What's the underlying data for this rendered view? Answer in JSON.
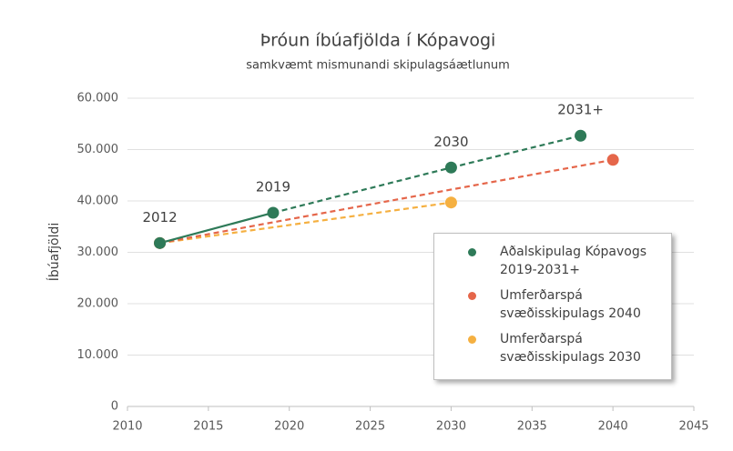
{
  "chart_data": {
    "type": "line",
    "title": "Þróun íbúafjölda í Kópavogi",
    "subtitle": "samkvæmt mismunandi skipulagsáætlunum",
    "y_label": "Íbúafjöldi",
    "xlim": [
      2010,
      2045
    ],
    "xticks": [
      2010,
      2015,
      2020,
      2025,
      2030,
      2035,
      2040,
      2045
    ],
    "ylim": [
      0,
      60000
    ],
    "yticks": [
      0,
      {
        "value": 10000,
        "label": "10.000"
      },
      {
        "value": 20000,
        "label": "20.000"
      },
      {
        "value": 30000,
        "label": "30.000"
      },
      {
        "value": 40000,
        "label": "40.000"
      },
      {
        "value": 50000,
        "label": "50.000"
      },
      {
        "value": 60000,
        "label": "60.000"
      }
    ],
    "grid": true,
    "legend": "lower right",
    "series": [
      {
        "name": "Umferðarspá svæðisskipulags 2030",
        "color": "#f5b041",
        "x": [
          2012,
          2030
        ],
        "values": [
          31800,
          39700
        ],
        "dash_from": 0
      },
      {
        "name": "Umferðarspá svæðisskipulags 2040",
        "color": "#e5664a",
        "x": [
          2012,
          2040
        ],
        "values": [
          31800,
          48000
        ],
        "dash_from": 0
      },
      {
        "name": "Aðalskipulag Kópavogs 2019-2031+",
        "color": "#2e7a58",
        "x": [
          2012,
          2019,
          2030,
          2038
        ],
        "values": [
          31800,
          37700,
          46500,
          52700
        ],
        "dash_from": 1,
        "point_labels": [
          "2012",
          "2019",
          "2030",
          "2031+"
        ]
      }
    ]
  }
}
